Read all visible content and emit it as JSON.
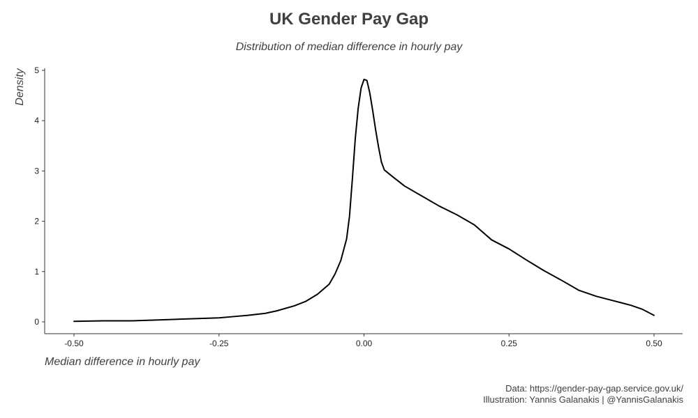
{
  "chart_data": {
    "type": "line",
    "title": "UK Gender Pay Gap",
    "subtitle": "Distribution of median difference in hourly pay",
    "xlabel": "Median difference in hourly pay",
    "ylabel": "Density",
    "xlim": [
      -0.5,
      0.5
    ],
    "ylim": [
      0,
      5
    ],
    "x_ticks": [
      -0.5,
      -0.25,
      0.0,
      0.25,
      0.5
    ],
    "x_tick_labels": [
      "-0.50",
      "-0.25",
      "0.00",
      "0.25",
      "0.50"
    ],
    "y_ticks": [
      0,
      1,
      2,
      3,
      4,
      5
    ],
    "y_tick_labels": [
      "0",
      "1",
      "2",
      "3",
      "4",
      "5"
    ],
    "grid": false,
    "series": [
      {
        "color": "#000000",
        "x": [
          -0.5,
          -0.45,
          -0.4,
          -0.35,
          -0.3,
          -0.25,
          -0.22,
          -0.2,
          -0.17,
          -0.15,
          -0.12,
          -0.1,
          -0.08,
          -0.06,
          -0.05,
          -0.04,
          -0.03,
          -0.025,
          -0.02,
          -0.015,
          -0.01,
          -0.005,
          0.0,
          0.005,
          0.01,
          0.015,
          0.02,
          0.025,
          0.03,
          0.035,
          0.05,
          0.07,
          0.1,
          0.13,
          0.16,
          0.19,
          0.22,
          0.25,
          0.28,
          0.31,
          0.34,
          0.37,
          0.4,
          0.43,
          0.46,
          0.48,
          0.5
        ],
        "y": [
          0.01,
          0.02,
          0.02,
          0.04,
          0.06,
          0.08,
          0.11,
          0.13,
          0.17,
          0.22,
          0.32,
          0.41,
          0.55,
          0.75,
          0.95,
          1.22,
          1.65,
          2.1,
          2.85,
          3.65,
          4.25,
          4.65,
          4.82,
          4.8,
          4.55,
          4.2,
          3.82,
          3.48,
          3.18,
          3.02,
          2.88,
          2.7,
          2.5,
          2.3,
          2.13,
          1.93,
          1.63,
          1.45,
          1.23,
          1.02,
          0.83,
          0.63,
          0.51,
          0.42,
          0.33,
          0.25,
          0.13
        ]
      }
    ]
  },
  "caption": {
    "data": "Data: https://gender-pay-gap.service.gov.uk/",
    "illustration": "Illustration: Yannis Galanakis | @YannisGalanakis"
  }
}
